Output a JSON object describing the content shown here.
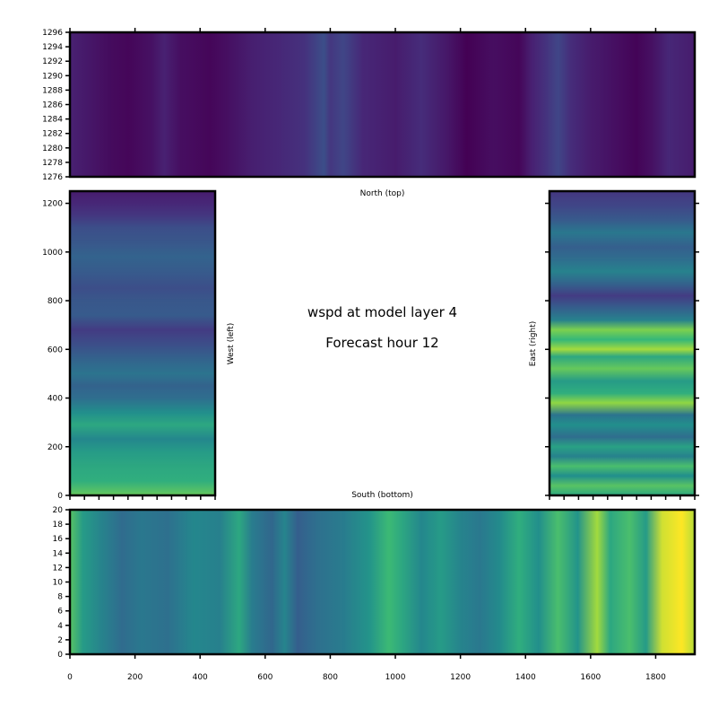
{
  "center": {
    "line1": "wspd at model layer 4",
    "line2": "Forecast hour 12"
  },
  "chart_data": [
    {
      "type": "heatmap",
      "panel": "north",
      "label": "North (top)",
      "xlim": [
        0,
        1920
      ],
      "ylim": [
        1276,
        1296
      ],
      "x_ticks": [
        0,
        200,
        400,
        600,
        800,
        1000,
        1200,
        1400,
        1600,
        1800
      ],
      "y_ticks": [
        1276,
        1278,
        1280,
        1282,
        1284,
        1286,
        1288,
        1290,
        1292,
        1294,
        1296
      ],
      "colormap": "viridis",
      "stripe_orientation": "vertical",
      "profile_axis": "x",
      "profile": [
        {
          "pos": 0,
          "v": 0.12
        },
        {
          "pos": 60,
          "v": 0.08
        },
        {
          "pos": 120,
          "v": 0.04
        },
        {
          "pos": 180,
          "v": 0.02
        },
        {
          "pos": 250,
          "v": 0.06
        },
        {
          "pos": 290,
          "v": 0.12
        },
        {
          "pos": 340,
          "v": 0.05
        },
        {
          "pos": 430,
          "v": 0.02
        },
        {
          "pos": 480,
          "v": 0.05
        },
        {
          "pos": 560,
          "v": 0.11
        },
        {
          "pos": 640,
          "v": 0.14
        },
        {
          "pos": 720,
          "v": 0.18
        },
        {
          "pos": 780,
          "v": 0.3
        },
        {
          "pos": 800,
          "v": 0.2
        },
        {
          "pos": 840,
          "v": 0.26
        },
        {
          "pos": 900,
          "v": 0.14
        },
        {
          "pos": 1000,
          "v": 0.1
        },
        {
          "pos": 1080,
          "v": 0.16
        },
        {
          "pos": 1160,
          "v": 0.08
        },
        {
          "pos": 1220,
          "v": 0.0
        },
        {
          "pos": 1300,
          "v": 0.05
        },
        {
          "pos": 1380,
          "v": 0.02
        },
        {
          "pos": 1420,
          "v": 0.12
        },
        {
          "pos": 1460,
          "v": 0.18
        },
        {
          "pos": 1500,
          "v": 0.26
        },
        {
          "pos": 1540,
          "v": 0.16
        },
        {
          "pos": 1600,
          "v": 0.1
        },
        {
          "pos": 1680,
          "v": 0.05
        },
        {
          "pos": 1740,
          "v": 0.01
        },
        {
          "pos": 1790,
          "v": 0.06
        },
        {
          "pos": 1840,
          "v": 0.14
        },
        {
          "pos": 1920,
          "v": 0.1
        }
      ]
    },
    {
      "type": "heatmap",
      "panel": "west",
      "label": "West (left)",
      "xlim": [
        0,
        20
      ],
      "ylim": [
        0,
        1250
      ],
      "x_ticks": [
        0,
        2,
        4,
        6,
        8,
        10,
        12,
        14,
        16,
        18,
        20
      ],
      "y_ticks": [
        0,
        200,
        400,
        600,
        800,
        1000,
        1200
      ],
      "colormap": "viridis",
      "stripe_orientation": "horizontal",
      "profile_axis": "y",
      "profile": [
        {
          "pos": 0,
          "v": 0.82
        },
        {
          "pos": 60,
          "v": 0.72
        },
        {
          "pos": 120,
          "v": 0.7
        },
        {
          "pos": 180,
          "v": 0.66
        },
        {
          "pos": 230,
          "v": 0.58
        },
        {
          "pos": 290,
          "v": 0.7
        },
        {
          "pos": 340,
          "v": 0.62
        },
        {
          "pos": 400,
          "v": 0.45
        },
        {
          "pos": 450,
          "v": 0.4
        },
        {
          "pos": 500,
          "v": 0.48
        },
        {
          "pos": 560,
          "v": 0.4
        },
        {
          "pos": 620,
          "v": 0.3
        },
        {
          "pos": 680,
          "v": 0.22
        },
        {
          "pos": 740,
          "v": 0.36
        },
        {
          "pos": 800,
          "v": 0.34
        },
        {
          "pos": 850,
          "v": 0.3
        },
        {
          "pos": 920,
          "v": 0.36
        },
        {
          "pos": 980,
          "v": 0.4
        },
        {
          "pos": 1040,
          "v": 0.34
        },
        {
          "pos": 1100,
          "v": 0.3
        },
        {
          "pos": 1150,
          "v": 0.2
        },
        {
          "pos": 1200,
          "v": 0.14
        },
        {
          "pos": 1250,
          "v": 0.1
        }
      ]
    },
    {
      "type": "heatmap",
      "panel": "east",
      "label": "East (right)",
      "xlim": [
        0,
        20
      ],
      "ylim": [
        0,
        1250
      ],
      "x_ticks": [
        0,
        2,
        4,
        6,
        8,
        10,
        12,
        14,
        16,
        18,
        20
      ],
      "y_ticks": [
        0,
        200,
        400,
        600,
        800,
        1000,
        1200
      ],
      "colormap": "viridis",
      "stripe_orientation": "horizontal",
      "profile_axis": "y",
      "profile": [
        {
          "pos": 0,
          "v": 0.7
        },
        {
          "pos": 40,
          "v": 0.8
        },
        {
          "pos": 80,
          "v": 0.62
        },
        {
          "pos": 120,
          "v": 0.78
        },
        {
          "pos": 160,
          "v": 0.55
        },
        {
          "pos": 200,
          "v": 0.68
        },
        {
          "pos": 240,
          "v": 0.45
        },
        {
          "pos": 290,
          "v": 0.62
        },
        {
          "pos": 330,
          "v": 0.48
        },
        {
          "pos": 380,
          "v": 0.88
        },
        {
          "pos": 420,
          "v": 0.72
        },
        {
          "pos": 470,
          "v": 0.66
        },
        {
          "pos": 520,
          "v": 0.82
        },
        {
          "pos": 570,
          "v": 0.7
        },
        {
          "pos": 600,
          "v": 0.9
        },
        {
          "pos": 640,
          "v": 0.75
        },
        {
          "pos": 680,
          "v": 0.85
        },
        {
          "pos": 720,
          "v": 0.55
        },
        {
          "pos": 770,
          "v": 0.38
        },
        {
          "pos": 820,
          "v": 0.22
        },
        {
          "pos": 870,
          "v": 0.4
        },
        {
          "pos": 920,
          "v": 0.55
        },
        {
          "pos": 970,
          "v": 0.45
        },
        {
          "pos": 1020,
          "v": 0.38
        },
        {
          "pos": 1080,
          "v": 0.5
        },
        {
          "pos": 1130,
          "v": 0.36
        },
        {
          "pos": 1190,
          "v": 0.26
        },
        {
          "pos": 1250,
          "v": 0.2
        }
      ]
    },
    {
      "type": "heatmap",
      "panel": "south",
      "label": "South (bottom)",
      "xlim": [
        0,
        1920
      ],
      "ylim": [
        0,
        20
      ],
      "x_ticks": [
        0,
        200,
        400,
        600,
        800,
        1000,
        1200,
        1400,
        1600,
        1800
      ],
      "y_ticks": [
        0,
        2,
        4,
        6,
        8,
        10,
        12,
        14,
        16,
        18,
        20
      ],
      "colormap": "viridis",
      "stripe_orientation": "vertical",
      "profile_axis": "x",
      "profile": [
        {
          "pos": 0,
          "v": 0.8
        },
        {
          "pos": 40,
          "v": 0.66
        },
        {
          "pos": 100,
          "v": 0.55
        },
        {
          "pos": 160,
          "v": 0.44
        },
        {
          "pos": 220,
          "v": 0.5
        },
        {
          "pos": 300,
          "v": 0.46
        },
        {
          "pos": 380,
          "v": 0.58
        },
        {
          "pos": 460,
          "v": 0.54
        },
        {
          "pos": 520,
          "v": 0.7
        },
        {
          "pos": 560,
          "v": 0.52
        },
        {
          "pos": 620,
          "v": 0.42
        },
        {
          "pos": 660,
          "v": 0.56
        },
        {
          "pos": 700,
          "v": 0.38
        },
        {
          "pos": 760,
          "v": 0.46
        },
        {
          "pos": 840,
          "v": 0.52
        },
        {
          "pos": 920,
          "v": 0.64
        },
        {
          "pos": 980,
          "v": 0.76
        },
        {
          "pos": 1020,
          "v": 0.7
        },
        {
          "pos": 1080,
          "v": 0.58
        },
        {
          "pos": 1140,
          "v": 0.66
        },
        {
          "pos": 1200,
          "v": 0.56
        },
        {
          "pos": 1260,
          "v": 0.5
        },
        {
          "pos": 1320,
          "v": 0.6
        },
        {
          "pos": 1380,
          "v": 0.72
        },
        {
          "pos": 1440,
          "v": 0.62
        },
        {
          "pos": 1500,
          "v": 0.78
        },
        {
          "pos": 1560,
          "v": 0.64
        },
        {
          "pos": 1620,
          "v": 0.9
        },
        {
          "pos": 1660,
          "v": 0.7
        },
        {
          "pos": 1720,
          "v": 0.78
        },
        {
          "pos": 1770,
          "v": 0.66
        },
        {
          "pos": 1820,
          "v": 0.95
        },
        {
          "pos": 1880,
          "v": 1.0
        },
        {
          "pos": 1920,
          "v": 0.92
        }
      ]
    }
  ]
}
